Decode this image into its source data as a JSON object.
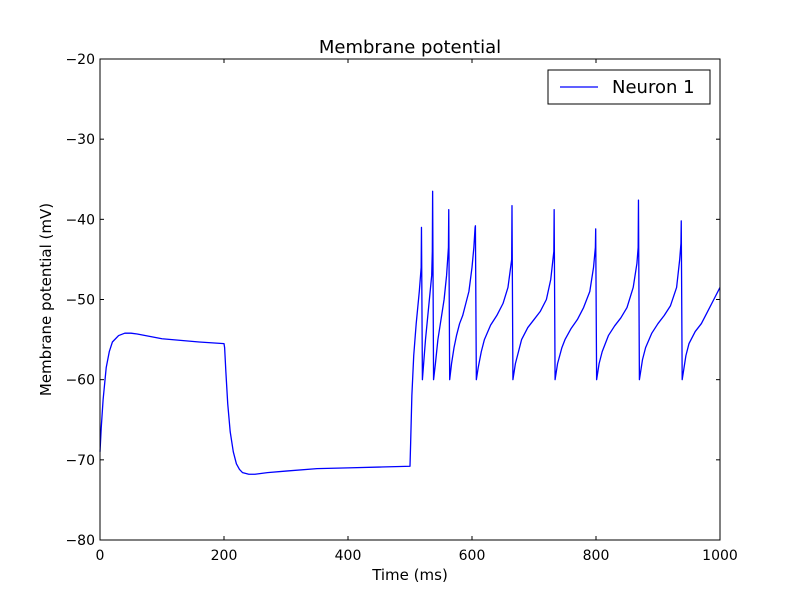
{
  "chart_data": {
    "type": "line",
    "title": "Membrane potential",
    "xlabel": "Time (ms)",
    "ylabel": "Membrane potential (mV)",
    "xlim": [
      0,
      1000
    ],
    "ylim": [
      -80,
      -20
    ],
    "xticks": [
      0,
      200,
      400,
      600,
      800,
      1000
    ],
    "xtick_labels": [
      "0",
      "200",
      "400",
      "600",
      "800",
      "1000"
    ],
    "yticks": [
      -80,
      -70,
      -60,
      -50,
      -40,
      -30,
      -20
    ],
    "ytick_labels": [
      "−80",
      "−70",
      "−60",
      "−50",
      "−40",
      "−30",
      "−20"
    ],
    "grid": false,
    "legend_position": "top-right",
    "line_color": "#0000ff",
    "series": [
      {
        "name": "Neuron 1",
        "x": [
          0,
          2,
          5,
          10,
          15,
          20,
          30,
          40,
          50,
          60,
          80,
          100,
          130,
          160,
          200,
          201,
          203,
          206,
          210,
          215,
          220,
          225,
          230,
          240,
          250,
          270,
          300,
          350,
          400,
          450,
          500,
          501,
          503,
          506,
          510,
          515,
          518,
          518.5,
          520,
          522,
          525,
          530,
          535,
          536,
          536.5,
          538,
          541,
          545,
          550,
          555,
          559,
          562,
          562.5,
          564,
          567,
          571,
          575,
          580,
          585,
          590,
          595,
          600,
          603,
          605,
          605.5,
          607,
          610,
          615,
          620,
          630,
          640,
          650,
          658,
          664,
          664.5,
          666,
          670,
          675,
          680,
          690,
          700,
          710,
          720,
          727,
          732,
          732.5,
          734,
          738,
          745,
          750,
          760,
          770,
          780,
          790,
          796,
          799,
          799.5,
          801,
          805,
          810,
          820,
          830,
          840,
          850,
          860,
          866,
          868,
          868.5,
          870,
          875,
          880,
          890,
          900,
          910,
          920,
          930,
          935,
          937,
          937.5,
          939,
          945,
          950,
          960,
          970,
          980,
          990,
          1000
        ],
        "y": [
          -69,
          -66,
          -62.5,
          -58.5,
          -56.5,
          -55.3,
          -54.5,
          -54.2,
          -54.2,
          -54.3,
          -54.6,
          -54.9,
          -55.1,
          -55.3,
          -55.5,
          -56,
          -59,
          -63,
          -66.5,
          -69,
          -70.5,
          -71.2,
          -71.6,
          -71.8,
          -71.8,
          -71.6,
          -71.4,
          -71.1,
          -71,
          -70.9,
          -70.8,
          -68,
          -62,
          -57,
          -53,
          -49,
          -46,
          -41,
          -60,
          -58,
          -55,
          -51,
          -47,
          -44,
          -36.5,
          -60,
          -58,
          -55,
          -52.5,
          -50,
          -47,
          -43.5,
          -38.8,
          -60,
          -58,
          -56,
          -54.5,
          -53,
          -52,
          -50.5,
          -49,
          -46,
          -43.5,
          -41,
          -40.8,
          -60,
          -58.5,
          -56.5,
          -55,
          -53.2,
          -52,
          -50.5,
          -48.5,
          -45,
          -38.3,
          -60,
          -58,
          -56.5,
          -55,
          -53.5,
          -52.5,
          -51.5,
          -50,
          -47.5,
          -44,
          -38.8,
          -60,
          -58,
          -56,
          -55,
          -53.6,
          -52.5,
          -51,
          -49,
          -46,
          -43.5,
          -41.2,
          -60,
          -58,
          -56.5,
          -54.5,
          -53.3,
          -52.3,
          -51,
          -48.5,
          -45.5,
          -43.5,
          -37.6,
          -60,
          -57.5,
          -56,
          -54.2,
          -53,
          -52,
          -50.8,
          -48.5,
          -45,
          -43,
          -40.2,
          -60,
          -57,
          -55.5,
          -54,
          -53,
          -51.5,
          -50,
          -48.5
        ]
      }
    ]
  }
}
